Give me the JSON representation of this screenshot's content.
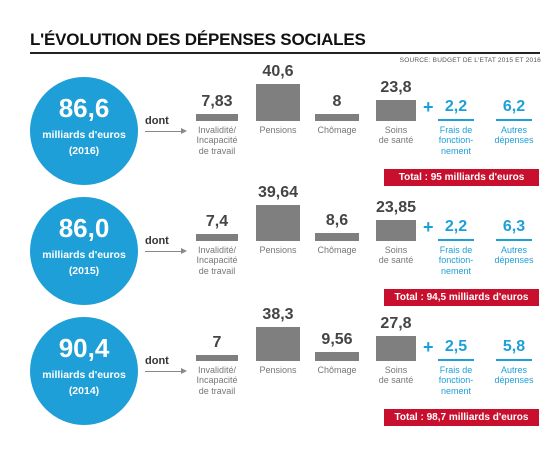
{
  "header": {
    "title": "L'ÉVOLUTION DES DÉPENSES SOCIALES",
    "source": "SOURCE: BUDGET DE L'ETAT 2015 ET 2016"
  },
  "colors": {
    "accent_blue": "#1e9fd8",
    "bar_gray": "#7f7f7f",
    "total_red": "#c8102e"
  },
  "chart_data": {
    "type": "bar",
    "title": "L'ÉVOLUTION DES DÉPENSES SOCIALES",
    "unit": "milliards d'euros",
    "categories": [
      "Invalidité/ Incapacité de travail",
      "Pensions",
      "Chômage",
      "Soins de santé",
      "Frais de fonctionnement",
      "Autres dépenses"
    ],
    "panels": [
      {
        "amount": "86,6",
        "unit_label": "milliards d'euros",
        "year_label": "(2016)",
        "connector": "dont",
        "values": [
          "7,83",
          "40,6",
          "8",
          "23,8",
          "2,2",
          "6,2"
        ],
        "numeric": [
          7.83,
          40.6,
          8,
          23.8,
          2.2,
          6.2
        ],
        "total": "Total : 95 milliards d'euros"
      },
      {
        "amount": "86,0",
        "unit_label": "milliards d'euros",
        "year_label": "(2015)",
        "connector": "dont",
        "values": [
          "7,4",
          "39,64",
          "8,6",
          "23,85",
          "2,2",
          "6,3"
        ],
        "numeric": [
          7.4,
          39.64,
          8.6,
          23.85,
          2.2,
          6.3
        ],
        "total": "Total : 94,5 milliards d'euros"
      },
      {
        "amount": "90,4",
        "unit_label": "milliards d'euros",
        "year_label": "(2014)",
        "connector": "dont",
        "values": [
          "7",
          "38,3",
          "9,56",
          "27,8",
          "2,5",
          "5,8"
        ],
        "numeric": [
          7,
          38.3,
          9.56,
          27.8,
          2.5,
          5.8
        ],
        "total": "Total : 98,7 milliards d'euros"
      }
    ],
    "labels": [
      [
        "Invalidité/",
        "Incapacité",
        "de travail"
      ],
      [
        "Pensions"
      ],
      [
        "Chômage"
      ],
      [
        "Soins",
        "de santé"
      ],
      [
        "Frais de",
        "fonction-",
        "nement"
      ],
      [
        "Autres",
        "dépenses"
      ]
    ],
    "grid": false,
    "legend": "none"
  }
}
